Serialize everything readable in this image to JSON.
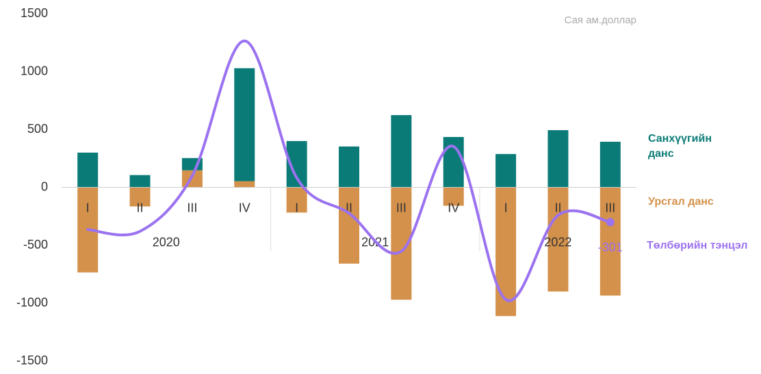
{
  "chart_data": {
    "type": "bar",
    "unit_note": "Сая ам.доллар",
    "categories": [
      "I",
      "II",
      "III",
      "IV",
      "I",
      "II",
      "III",
      "IV",
      "I",
      "II",
      "III"
    ],
    "groups": [
      {
        "label": "2020",
        "span": 4
      },
      {
        "label": "2021",
        "span": 4
      },
      {
        "label": "2022",
        "span": 3
      }
    ],
    "series": [
      {
        "name": "Санхүүгийн данс",
        "color": "#0b7b78",
        "type": "bar",
        "values": [
          300,
          106,
          106,
          976,
          400,
          353,
          624,
          435,
          288,
          494,
          394
        ]
      },
      {
        "name": "Урсгал данс",
        "color": "#d4914b",
        "type": "bar",
        "values": [
          -735,
          -165,
          147,
          53,
          -218,
          -659,
          -971,
          -159,
          -1112,
          -900,
          -935
        ]
      },
      {
        "name": "Төлбөрийн тэнцэл",
        "color": "#9b72f0",
        "type": "line",
        "values": [
          -365,
          -380,
          100,
          1265,
          82,
          -224,
          -553,
          353,
          -970,
          -241,
          -301
        ]
      }
    ],
    "ylim": [
      -1500,
      1500
    ],
    "yticks": [
      -1500,
      -1000,
      -500,
      0,
      500,
      1000,
      1500
    ],
    "grid": false
  }
}
